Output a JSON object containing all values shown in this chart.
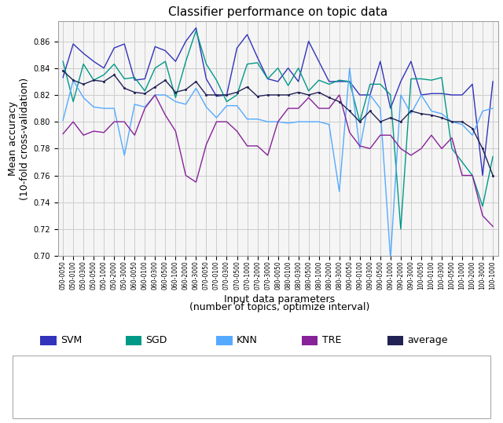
{
  "title": "Classifier performance on topic data",
  "xlabel_line1": "Input data parameters",
  "xlabel_line2": "(number of topics, optimize interval)",
  "ylabel": "Mean accuracy\n(10-fold cross-validation)",
  "ylim": [
    0.7,
    0.875
  ],
  "yticks": [
    0.7,
    0.72,
    0.74,
    0.76,
    0.78,
    0.8,
    0.82,
    0.84,
    0.86
  ],
  "x_labels": [
    "050-0050",
    "050-0100",
    "050-0300",
    "050-0500",
    "050-1000",
    "050-2000",
    "050-3000",
    "060-0050",
    "060-0100",
    "060-0300",
    "060-0500",
    "060-1000",
    "060-2000",
    "060-3000",
    "070-0050",
    "070-0100",
    "070-0300",
    "070-0500",
    "070-1000",
    "070-2000",
    "070-3000",
    "080-0050",
    "080-0100",
    "080-0300",
    "080-0500",
    "080-1000",
    "080-2000",
    "080-3000",
    "090-0050",
    "090-0100",
    "090-0300",
    "090-0500",
    "090-1000",
    "090-2000",
    "090-3000",
    "100-0050",
    "100-0100",
    "100-0300",
    "100-0500",
    "100-1000",
    "100-2000",
    "100-3000",
    "100-1000"
  ],
  "SVM": [
    0.833,
    0.858,
    0.851,
    0.845,
    0.84,
    0.855,
    0.858,
    0.831,
    0.832,
    0.856,
    0.853,
    0.845,
    0.86,
    0.87,
    0.832,
    0.819,
    0.82,
    0.855,
    0.865,
    0.848,
    0.832,
    0.83,
    0.84,
    0.83,
    0.86,
    0.845,
    0.83,
    0.83,
    0.83,
    0.82,
    0.82,
    0.845,
    0.81,
    0.83,
    0.845,
    0.82,
    0.821,
    0.821,
    0.82,
    0.82,
    0.828,
    0.76,
    0.83
  ],
  "SGD": [
    0.845,
    0.815,
    0.843,
    0.831,
    0.835,
    0.843,
    0.832,
    0.833,
    0.823,
    0.84,
    0.845,
    0.818,
    0.845,
    0.868,
    0.843,
    0.831,
    0.815,
    0.82,
    0.843,
    0.844,
    0.832,
    0.84,
    0.827,
    0.84,
    0.823,
    0.831,
    0.828,
    0.831,
    0.83,
    0.8,
    0.828,
    0.828,
    0.82,
    0.72,
    0.832,
    0.832,
    0.831,
    0.833,
    0.78,
    0.77,
    0.76,
    0.737,
    0.774
  ],
  "KNN": [
    0.801,
    0.831,
    0.818,
    0.811,
    0.81,
    0.81,
    0.775,
    0.813,
    0.811,
    0.82,
    0.82,
    0.815,
    0.813,
    0.825,
    0.811,
    0.803,
    0.812,
    0.812,
    0.802,
    0.802,
    0.8,
    0.8,
    0.799,
    0.8,
    0.8,
    0.8,
    0.798,
    0.748,
    0.84,
    0.78,
    0.82,
    0.81,
    0.698,
    0.82,
    0.806,
    0.82,
    0.808,
    0.806,
    0.8,
    0.798,
    0.79,
    0.808,
    0.81
  ],
  "TRE": [
    0.791,
    0.8,
    0.79,
    0.793,
    0.792,
    0.8,
    0.8,
    0.79,
    0.81,
    0.82,
    0.805,
    0.793,
    0.76,
    0.755,
    0.783,
    0.8,
    0.8,
    0.793,
    0.782,
    0.782,
    0.775,
    0.8,
    0.81,
    0.81,
    0.818,
    0.81,
    0.81,
    0.82,
    0.792,
    0.782,
    0.78,
    0.79,
    0.79,
    0.78,
    0.775,
    0.78,
    0.79,
    0.78,
    0.788,
    0.76,
    0.76,
    0.73,
    0.722
  ],
  "average": [
    0.838,
    0.831,
    0.828,
    0.831,
    0.83,
    0.835,
    0.825,
    0.822,
    0.821,
    0.826,
    0.831,
    0.822,
    0.824,
    0.83,
    0.82,
    0.82,
    0.82,
    0.822,
    0.826,
    0.819,
    0.82,
    0.82,
    0.82,
    0.822,
    0.82,
    0.822,
    0.818,
    0.815,
    0.808,
    0.8,
    0.808,
    0.8,
    0.803,
    0.8,
    0.808,
    0.806,
    0.805,
    0.803,
    0.8,
    0.8,
    0.795,
    0.78,
    0.76
  ],
  "colors": {
    "SVM": "#3333bb",
    "SGD": "#009988",
    "KNN": "#55aaff",
    "TRE": "#882299",
    "average": "#222255"
  },
  "bg_color": "#f5f5f5",
  "grid_color": "#cccccc",
  "title_fontsize": 11,
  "axis_fontsize": 9,
  "tick_fontsize": 7,
  "legend_fontsize": 9
}
